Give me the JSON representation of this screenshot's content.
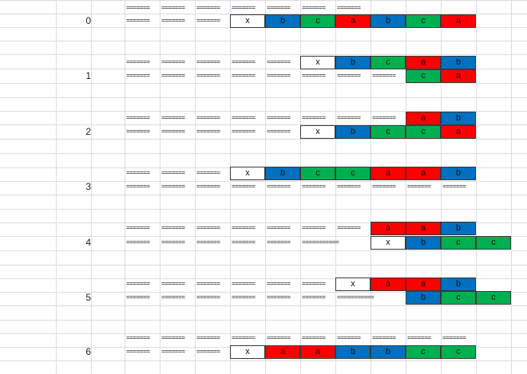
{
  "row_labels": [
    "0",
    "1",
    "2",
    "3",
    "4",
    "5",
    "6"
  ],
  "dash_text": "=======",
  "dash_text_long": "===========",
  "colors": {
    "x": "#ffffff",
    "a": "#ff0000",
    "b": "#0070c0",
    "c": "#00b050"
  },
  "cell_texts": {
    "x": "x",
    "a": "a",
    "b": "b",
    "c": "c"
  },
  "blocks": [
    {
      "label": "0",
      "lines": [
        {
          "dashes": 7,
          "cells": []
        },
        {
          "dashes": 3,
          "cells": [
            "x",
            "b",
            "c",
            "a",
            "b",
            "c",
            "a"
          ]
        }
      ]
    },
    {
      "label": "1",
      "lines": [
        {
          "dashes": 5,
          "cells": [
            "x",
            "b",
            "c",
            "a",
            "b"
          ]
        },
        {
          "dashes": 8,
          "cells": [
            "c",
            "a"
          ]
        }
      ]
    },
    {
      "label": "2",
      "lines": [
        {
          "dashes": 8,
          "cells": [
            "a",
            "b"
          ]
        },
        {
          "dashes": 5,
          "cells": [
            "x",
            "b",
            "c",
            "c",
            "a"
          ]
        }
      ]
    },
    {
      "label": "3",
      "lines": [
        {
          "dashes": 3,
          "cells": [
            "x",
            "b",
            "c",
            "c",
            "a",
            "a",
            "b"
          ]
        },
        {
          "dashes": 10,
          "cells": []
        }
      ]
    },
    {
      "label": "4",
      "lines": [
        {
          "dashes": 7,
          "cells": [
            "a",
            "a",
            "b"
          ]
        },
        {
          "dashes": 6,
          "long_last": true,
          "cells": [
            "x",
            "b",
            "c",
            "c"
          ]
        }
      ]
    },
    {
      "label": "5",
      "lines": [
        {
          "dashes": 6,
          "cells": [
            "x",
            "a",
            "a",
            "b"
          ]
        },
        {
          "dashes": 7,
          "long_last": true,
          "cells": [
            "b",
            "c",
            "c"
          ]
        }
      ]
    },
    {
      "label": "6",
      "lines": [
        {
          "dashes": 10,
          "cells": []
        },
        {
          "dashes": 3,
          "cells": [
            "x",
            "a",
            "a",
            "b",
            "b",
            "c",
            "c"
          ]
        }
      ]
    }
  ]
}
